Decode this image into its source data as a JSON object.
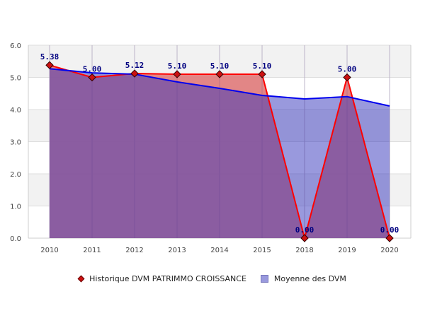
{
  "chart_data": {
    "type": "area",
    "title": "",
    "xlabel": "",
    "ylabel": "",
    "categories": [
      "2010",
      "2011",
      "2012",
      "2013",
      "2014",
      "2015",
      "2018",
      "2019",
      "2020"
    ],
    "ylim": [
      0,
      6
    ],
    "yticks": [
      "0.0",
      "1.0",
      "2.0",
      "3.0",
      "4.0",
      "5.0",
      "6.0"
    ],
    "grid": true,
    "legend_position": "bottom",
    "series": [
      {
        "name": "Historique DVM PATRIMMO CROISSANCE",
        "values": [
          5.38,
          5.0,
          5.12,
          5.1,
          5.1,
          5.1,
          0.0,
          5.0,
          0.0
        ],
        "labels": [
          "5.38",
          "5.00",
          "5.12",
          "5.10",
          "5.10",
          "5.10",
          "0.00",
          "5.00",
          "0.00"
        ],
        "color": "#ff0000",
        "fill": "#e08080",
        "marker": "diamond"
      },
      {
        "name": "Moyenne des DVM",
        "values": [
          5.27,
          5.14,
          5.1,
          4.86,
          4.66,
          4.44,
          4.33,
          4.4,
          4.11
        ],
        "color": "#0000ee",
        "fill": "#8e8ede"
      }
    ]
  },
  "legend": {
    "item1": "Historique DVM PATRIMMO CROISSANCE",
    "item2": "Moyenne des DVM"
  }
}
